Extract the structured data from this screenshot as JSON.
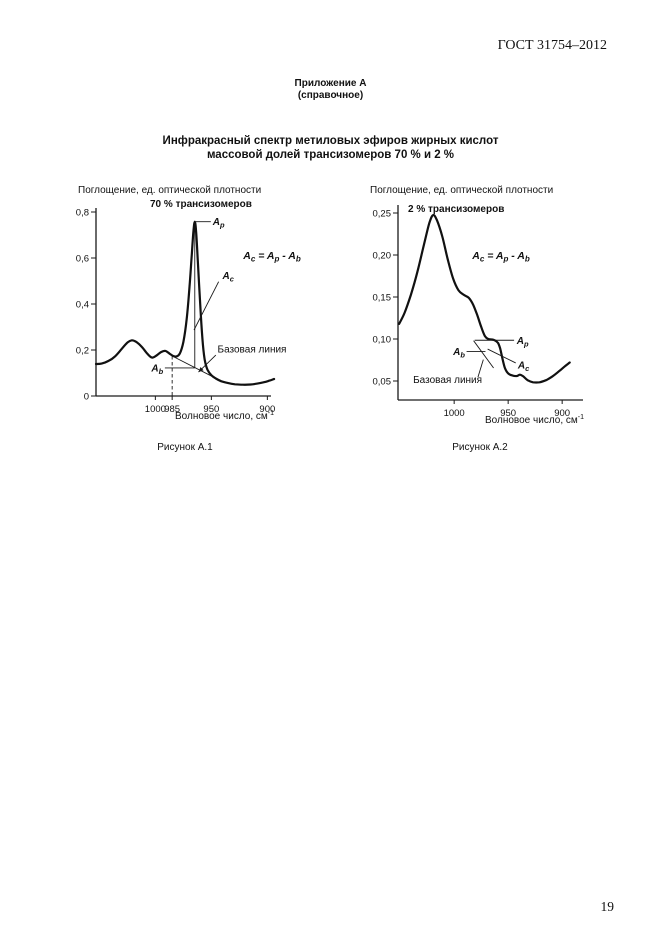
{
  "page": {
    "header": "ГОСТ 31754–2012",
    "appendix_title": "Приложение А",
    "appendix_subtitle": "(справочное)",
    "title_line1": "Инфракрасный спектр метиловых эфиров жирных кислот",
    "title_line2": "массовой долей трансизомеров 70 % и 2 %",
    "page_number": "19"
  },
  "chart_data": [
    {
      "type": "line",
      "figure_caption": "Рисунок А.1",
      "series_label": "70 % трансизомеров",
      "ylabel": "Поглощение, ед. оптической плотности",
      "xlabel": "Волновое число, см",
      "xlabel_sup": "-1",
      "xlim": [
        1053,
        896
      ],
      "ylim": [
        0,
        0.82
      ],
      "x_axis_reversed": true,
      "grid": false,
      "x_tick_values": [
        1000,
        985,
        950,
        900
      ],
      "x_tick_labels": [
        "1000",
        "985",
        "950",
        "900"
      ],
      "y_tick_values": [
        0,
        0.2,
        0.4,
        0.6,
        0.8
      ],
      "y_tick_labels": [
        "0",
        "0,2",
        "0,4",
        "0,6",
        "0,8"
      ],
      "points": [
        [
          1053,
          0.139
        ],
        [
          1048,
          0.141
        ],
        [
          1042,
          0.152
        ],
        [
          1036,
          0.172
        ],
        [
          1030,
          0.205
        ],
        [
          1025,
          0.232
        ],
        [
          1021,
          0.242
        ],
        [
          1017,
          0.235
        ],
        [
          1012,
          0.213
        ],
        [
          1007,
          0.183
        ],
        [
          1003,
          0.167
        ],
        [
          999,
          0.176
        ],
        [
          995,
          0.191
        ],
        [
          991,
          0.196
        ],
        [
          987,
          0.183
        ],
        [
          984,
          0.174
        ],
        [
          981,
          0.172
        ],
        [
          978,
          0.186
        ],
        [
          975,
          0.235
        ],
        [
          972,
          0.335
        ],
        [
          969.5,
          0.475
        ],
        [
          967.5,
          0.615
        ],
        [
          966,
          0.715
        ],
        [
          964.8,
          0.758
        ],
        [
          963.6,
          0.715
        ],
        [
          962,
          0.58
        ],
        [
          960,
          0.4
        ],
        [
          958,
          0.25
        ],
        [
          956,
          0.16
        ],
        [
          953.5,
          0.115
        ],
        [
          950,
          0.09
        ],
        [
          946,
          0.076
        ],
        [
          941,
          0.064
        ],
        [
          935,
          0.056
        ],
        [
          929,
          0.051
        ],
        [
          922,
          0.049
        ],
        [
          915,
          0.05
        ],
        [
          909,
          0.054
        ],
        [
          903,
          0.06
        ],
        [
          898,
          0.067
        ],
        [
          894,
          0.074
        ]
      ],
      "peak": {
        "w": 964.8,
        "a": 0.758
      },
      "baseline_segment": [
        [
          985,
          0.174
        ],
        [
          944,
          0.072
        ]
      ],
      "peak_drop_line": [
        [
          964.8,
          0.758
        ],
        [
          964.8,
          0.124
        ]
      ],
      "dashed_guide": [
        [
          985,
          0.174
        ],
        [
          985,
          0
        ]
      ],
      "formula": {
        "t1": "A",
        "s1": "c",
        "t2": " = A",
        "s2": "p",
        "t3": " - A",
        "s3": "b"
      },
      "annotations": {
        "ap": {
          "text": "A",
          "sub": "p",
          "line": [
            [
              964.8,
              0.758
            ],
            [
              950.5,
              0.758
            ]
          ],
          "label_at": [
            948.8,
            0.758
          ]
        },
        "ab": {
          "text": "A",
          "sub": "b",
          "line": [
            [
              991.5,
              0.122
            ],
            [
              964.8,
              0.122
            ]
          ],
          "label_at": [
            993,
            0.122
          ]
        },
        "ac": {
          "text": "A",
          "sub": "c",
          "line": [
            [
              943.5,
              0.497
            ],
            [
              965.5,
              0.287
            ]
          ],
          "label_at": [
            940,
            0.525
          ]
        },
        "baseline_label": {
          "text": "Базовая линия",
          "line": [
            [
              946,
              0.178
            ],
            [
              961.5,
              0.104
            ]
          ],
          "label_at": [
            944.5,
            0.19
          ],
          "arrow": true
        }
      }
    },
    {
      "type": "line",
      "figure_caption": "Рисунок А.2",
      "series_label": "2 % трансизомеров",
      "ylabel": "Поглощение, ед. оптической плотности",
      "xlabel": "Волновое число, см",
      "xlabel_sup": "-1",
      "xlim": [
        1052,
        880
      ],
      "ylim": [
        0.027,
        0.26
      ],
      "x_axis_reversed": true,
      "grid": false,
      "x_tick_values": [
        1000,
        950,
        900
      ],
      "x_tick_labels": [
        "1000",
        "950",
        "900"
      ],
      "y_tick_values": [
        0.05,
        0.1,
        0.15,
        0.2,
        0.25
      ],
      "y_tick_labels": [
        "0,05",
        "0,10",
        "0,15",
        "0,20",
        "0,25"
      ],
      "points": [
        [
          1051,
          0.118
        ],
        [
          1046,
          0.131
        ],
        [
          1040,
          0.153
        ],
        [
          1034,
          0.18
        ],
        [
          1028,
          0.212
        ],
        [
          1023,
          0.238
        ],
        [
          1019.5,
          0.2475
        ],
        [
          1016,
          0.2415
        ],
        [
          1011,
          0.222
        ],
        [
          1006,
          0.195
        ],
        [
          1001,
          0.172
        ],
        [
          996,
          0.158
        ],
        [
          991,
          0.1525
        ],
        [
          986.5,
          0.149
        ],
        [
          982.5,
          0.141
        ],
        [
          978.5,
          0.128
        ],
        [
          975,
          0.1145
        ],
        [
          971.5,
          0.1035
        ],
        [
          968.5,
          0.1
        ],
        [
          965.5,
          0.0995
        ],
        [
          962.5,
          0.0985
        ],
        [
          959.5,
          0.0955
        ],
        [
          957.5,
          0.089
        ],
        [
          955.5,
          0.078
        ],
        [
          953,
          0.0655
        ],
        [
          950,
          0.059
        ],
        [
          946,
          0.0565
        ],
        [
          942,
          0.056
        ],
        [
          939,
          0.0575
        ],
        [
          936,
          0.0555
        ],
        [
          932,
          0.051
        ],
        [
          927,
          0.0485
        ],
        [
          921,
          0.0485
        ],
        [
          915,
          0.051
        ],
        [
          909,
          0.0555
        ],
        [
          903,
          0.0615
        ],
        [
          897,
          0.068
        ],
        [
          893,
          0.072
        ]
      ],
      "peak": {
        "w": 1019.5,
        "a": 0.2475
      },
      "baseline_segment": [
        [
          982,
          0.098
        ],
        [
          963.5,
          0.0655
        ]
      ],
      "formula": {
        "t1": "A",
        "s1": "c",
        "t2": " = A",
        "s2": "p",
        "t3": " - A",
        "s3": "b"
      },
      "annotations": {
        "ap": {
          "text": "A",
          "sub": "p",
          "line": [
            [
              981,
              0.0985
            ],
            [
              944.5,
              0.0985
            ]
          ],
          "label_at": [
            942,
            0.0985
          ]
        },
        "ab": {
          "text": "A",
          "sub": "b",
          "line": [
            [
              988.5,
              0.085
            ],
            [
              971,
              0.085
            ]
          ],
          "label_at": [
            990,
            0.085
          ]
        },
        "ac": {
          "text": "A",
          "sub": "c",
          "line": [
            [
              943,
              0.0715
            ],
            [
              969,
              0.088
            ]
          ],
          "label_at": [
            941,
            0.069
          ]
        },
        "baseline_label": {
          "text": "Базовая линия",
          "line": [
            [
              978,
              0.0545
            ],
            [
              973,
              0.0755
            ]
          ],
          "label_at": [
            1038,
            0.0476
          ],
          "arrow": false
        }
      }
    }
  ]
}
